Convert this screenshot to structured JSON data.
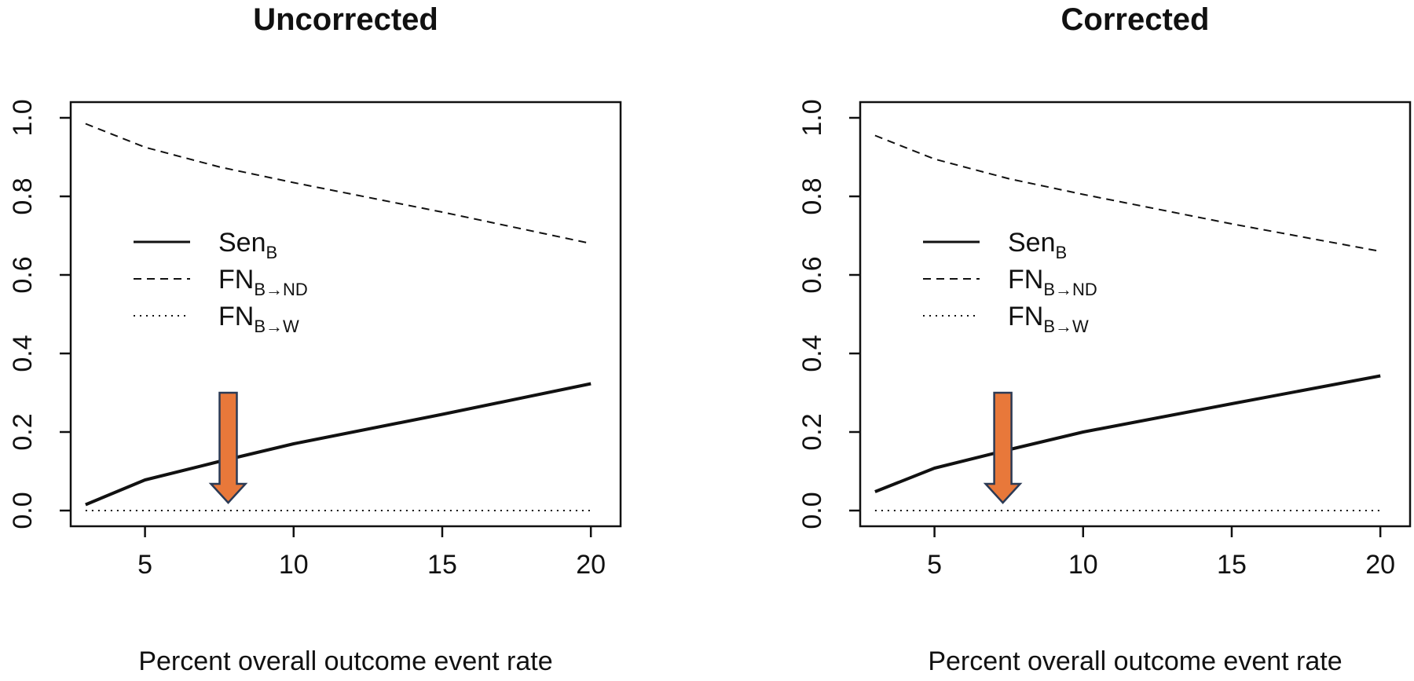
{
  "chart_data": [
    {
      "type": "line",
      "title": "Uncorrected",
      "xlabel": "Percent overall outcome event rate",
      "ylabel": "",
      "xlim": [
        2.5,
        21
      ],
      "ylim": [
        -0.04,
        1.04
      ],
      "xticks": [
        5,
        10,
        15,
        20
      ],
      "yticks": [
        0.0,
        0.2,
        0.4,
        0.6,
        0.8,
        1.0
      ],
      "ytick_labels": [
        "0.0",
        "0.2",
        "0.4",
        "0.6",
        "0.8",
        "1.0"
      ],
      "legend": {
        "position": "center-left",
        "entries": [
          {
            "base": "Sen",
            "sub": "B",
            "style": "solid"
          },
          {
            "base": "FN",
            "sub": "B→ND",
            "style": "dashed"
          },
          {
            "base": "FN",
            "sub": "B→W",
            "style": "dotted"
          }
        ]
      },
      "series": [
        {
          "name": "Sen_B",
          "style": "solid",
          "x": [
            3,
            5,
            7.5,
            10,
            15,
            20
          ],
          "y": [
            0.015,
            0.078,
            0.125,
            0.17,
            0.245,
            0.323
          ]
        },
        {
          "name": "FN_B→ND",
          "style": "dashed",
          "x": [
            3,
            5,
            7.5,
            10,
            15,
            20
          ],
          "y": [
            0.985,
            0.925,
            0.875,
            0.835,
            0.76,
            0.68
          ]
        },
        {
          "name": "FN_B→W",
          "style": "dotted",
          "x": [
            3,
            20
          ],
          "y": [
            0.0,
            0.0
          ]
        }
      ],
      "annotation": {
        "type": "arrow",
        "color": "#E8783A",
        "x": 7.8,
        "y_top": 0.3,
        "y_tip": 0.02
      }
    },
    {
      "type": "line",
      "title": "Corrected",
      "xlabel": "Percent overall outcome event rate",
      "ylabel": "",
      "xlim": [
        2.5,
        21
      ],
      "ylim": [
        -0.04,
        1.04
      ],
      "xticks": [
        5,
        10,
        15,
        20
      ],
      "yticks": [
        0.0,
        0.2,
        0.4,
        0.6,
        0.8,
        1.0
      ],
      "ytick_labels": [
        "0.0",
        "0.2",
        "0.4",
        "0.6",
        "0.8",
        "1.0"
      ],
      "legend": {
        "position": "center-left",
        "entries": [
          {
            "base": "Sen",
            "sub": "B",
            "style": "solid"
          },
          {
            "base": "FN",
            "sub": "B→ND",
            "style": "dashed"
          },
          {
            "base": "FN",
            "sub": "B→W",
            "style": "dotted"
          }
        ]
      },
      "series": [
        {
          "name": "Sen_B",
          "style": "solid",
          "x": [
            3,
            5,
            7.5,
            10,
            15,
            20
          ],
          "y": [
            0.048,
            0.108,
            0.155,
            0.2,
            0.272,
            0.343
          ]
        },
        {
          "name": "FN_B→ND",
          "style": "dashed",
          "x": [
            3,
            5,
            7.5,
            10,
            15,
            20
          ],
          "y": [
            0.955,
            0.895,
            0.845,
            0.805,
            0.73,
            0.66
          ]
        },
        {
          "name": "FN_B→W",
          "style": "dotted",
          "x": [
            3,
            20
          ],
          "y": [
            0.0,
            0.0
          ]
        }
      ],
      "annotation": {
        "type": "arrow",
        "color": "#E8783A",
        "x": 7.3,
        "y_top": 0.3,
        "y_tip": 0.02
      }
    }
  ]
}
